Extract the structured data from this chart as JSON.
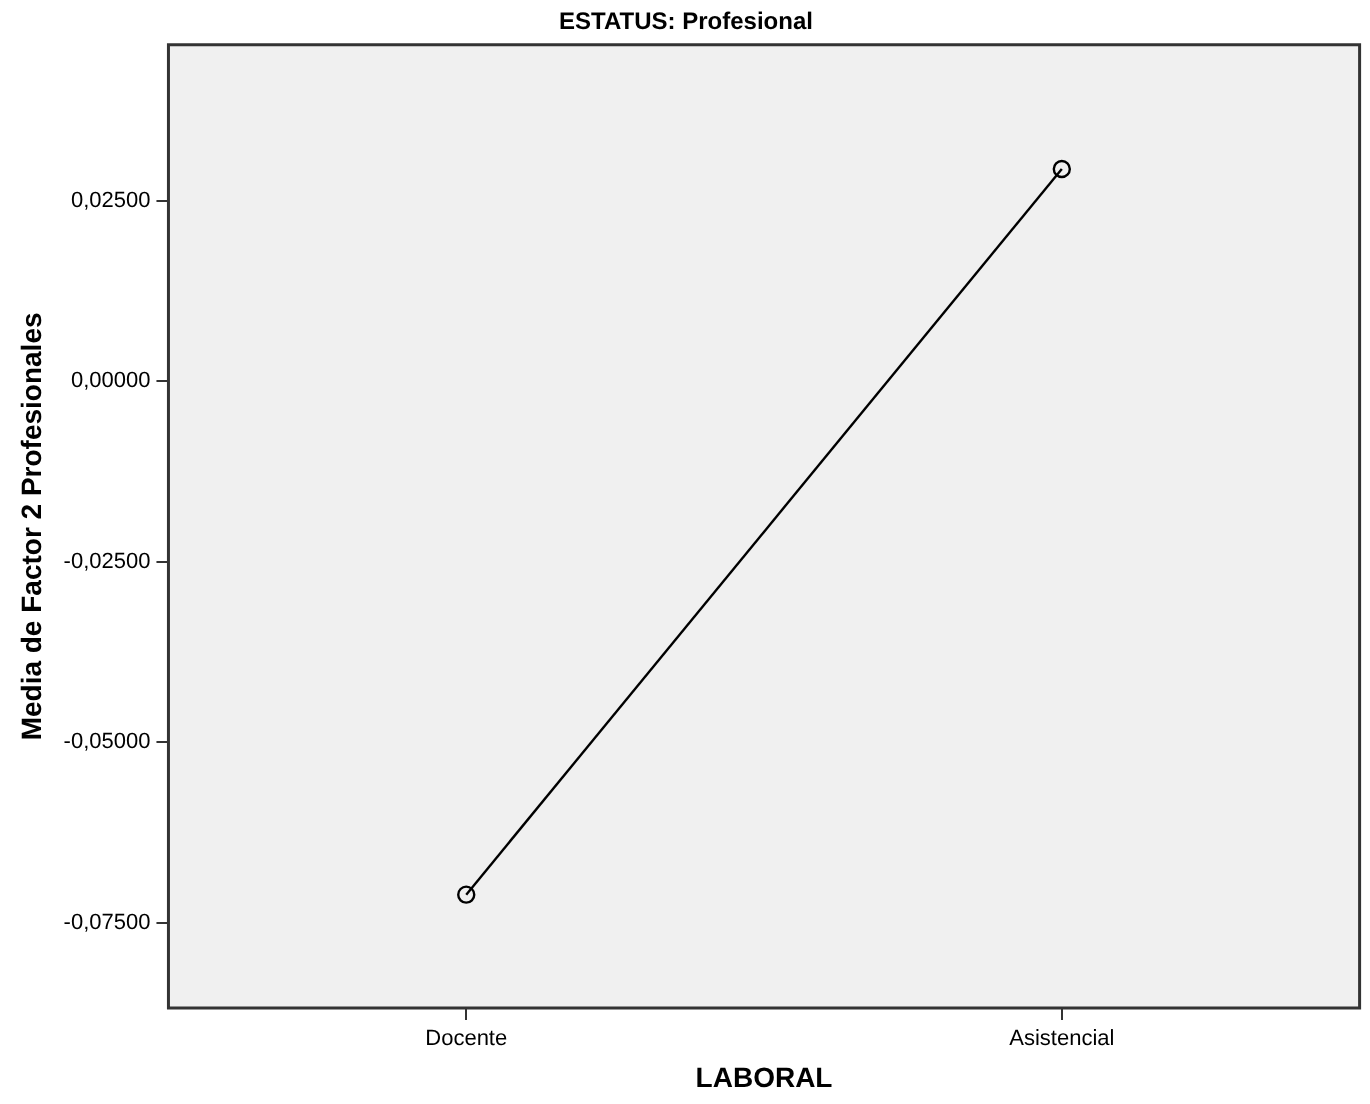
{
  "chart_data": {
    "type": "line",
    "title": "ESTATUS: Profesional",
    "xlabel": "LABORAL",
    "ylabel": "Media de Factor 2 Profesionales",
    "categories": [
      "Docente",
      "Asistencial"
    ],
    "series": [
      {
        "color": "#000000",
        "values": [
          -0.0711,
          0.0294
        ]
      }
    ],
    "ylim": [
      -0.0868,
      0.0466
    ],
    "yticks": [
      {
        "value": 0.025,
        "label": "0,02500"
      },
      {
        "value": 0,
        "label": "0,00000"
      },
      {
        "value": -0.025,
        "label": "-0,02500"
      },
      {
        "value": -0.05,
        "label": "-0,05000"
      },
      {
        "value": -0.075,
        "label": "-0,07500"
      }
    ],
    "grid": false,
    "legend": false,
    "marker": "circle",
    "line_style": "solid"
  }
}
